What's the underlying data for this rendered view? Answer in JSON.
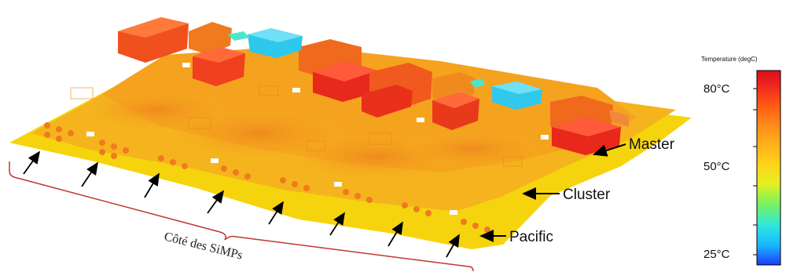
{
  "annotations": {
    "master": "Master",
    "cluster": "Cluster",
    "pacific": "Pacific",
    "side_label": "Côté des SiMPs"
  },
  "colorbar": {
    "title": "Temperature (degC)",
    "ticks": [
      {
        "label": "80°C",
        "value": 80
      },
      {
        "label": "50°C",
        "value": 50
      },
      {
        "label": "25°C",
        "value": 25
      }
    ],
    "range": [
      25,
      85
    ],
    "gradient": [
      "#1e3cff",
      "#19b5ff",
      "#2ee6e0",
      "#7ef25a",
      "#e6f020",
      "#ffd21a",
      "#ffb01a",
      "#ff8a1a",
      "#ff5a14",
      "#f0281e",
      "#d90f1a"
    ]
  },
  "colors": {
    "board_yellow": "#f5d40e",
    "board_orange": "#f5a41e",
    "hot_red": "#f0321e",
    "cool_cyan": "#3ad2e8",
    "bracket": "#c0392b"
  }
}
